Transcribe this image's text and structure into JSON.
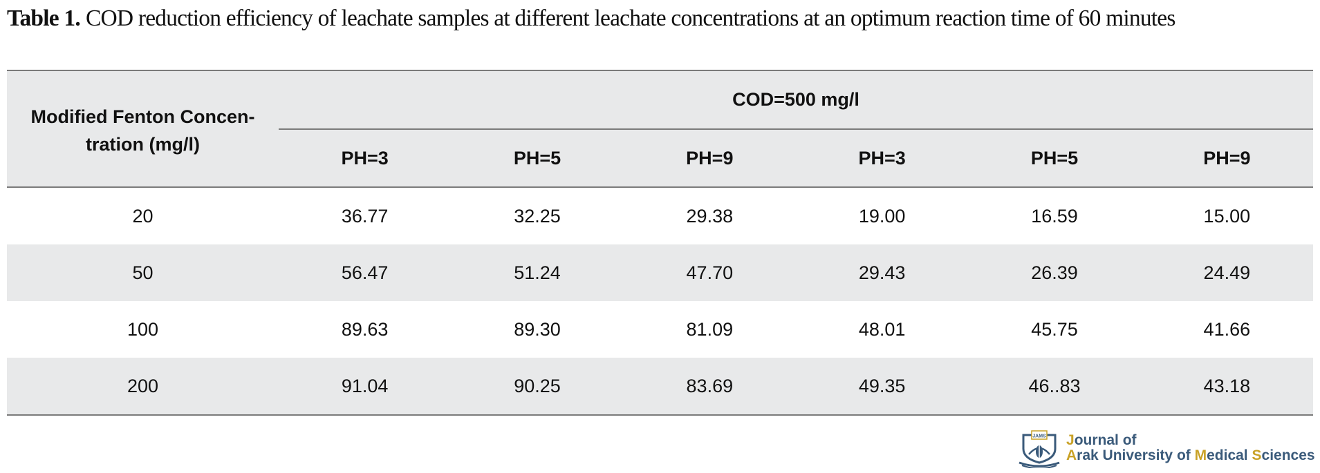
{
  "caption": {
    "label": "Table 1.",
    "text": "COD reduction efficiency of leachate samples at different leachate concentrations at an optimum reaction time of 60 minutes"
  },
  "table": {
    "row_header": "Modified Fenton Concentration (mg/l)",
    "row_header_line1": "Modified Fenton Concen-",
    "row_header_line2": "tration (mg/l)",
    "group_header": "COD=500 mg/l",
    "columns": [
      "PH=3",
      "PH=5",
      "PH=9",
      "PH=3",
      "PH=5",
      "PH=9"
    ],
    "rows": [
      {
        "conc": "20",
        "values": [
          "36.77",
          "32.25",
          "29.38",
          "19.00",
          "16.59",
          "15.00"
        ]
      },
      {
        "conc": "50",
        "values": [
          "56.47",
          "51.24",
          "47.70",
          "29.43",
          "26.39",
          "24.49"
        ]
      },
      {
        "conc": "100",
        "values": [
          "89.63",
          "89.30",
          "81.09",
          "48.01",
          "45.75",
          "41.66"
        ]
      },
      {
        "conc": "200",
        "values": [
          "91.04",
          "90.25",
          "83.69",
          "49.35",
          "46..83",
          "43.18"
        ]
      }
    ]
  },
  "logo": {
    "line1": "Journal of",
    "line2": "Arak University of Medical Sciences",
    "badge_text": "JAMS",
    "icon": "journal-emblem-icon",
    "colors": {
      "blue": "#3a5a7a",
      "gold": "#c9a227"
    }
  }
}
